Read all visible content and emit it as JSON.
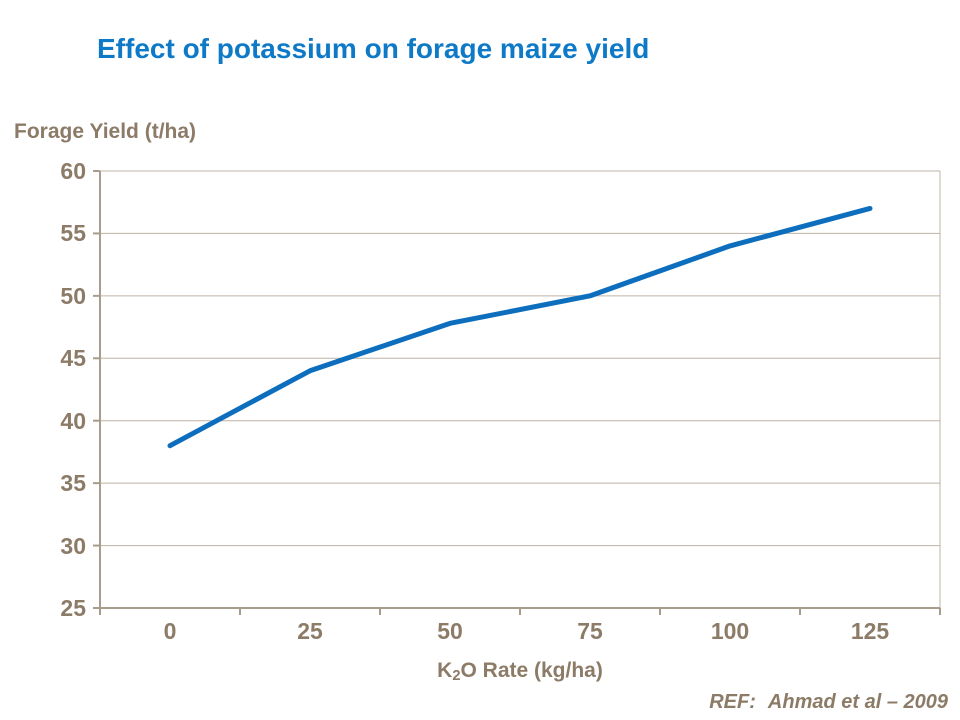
{
  "title": "Effect of potassium on forage maize yield",
  "chart_data": {
    "type": "line",
    "title": "Effect of potassium on forage maize yield",
    "ylabel": "Forage Yield (t/ha)",
    "xlabel": "K2O Rate (kg/ha)",
    "xlabel_parts": {
      "base": "K",
      "sub": "2",
      "rest": "O Rate (kg/ha)"
    },
    "categories": [
      "0",
      "25",
      "50",
      "75",
      "100",
      "125"
    ],
    "values": [
      38,
      44,
      47.8,
      50,
      54,
      57
    ],
    "series_name": "Forage yield",
    "yticks": [
      60,
      55,
      50,
      45,
      40,
      35,
      30,
      25
    ],
    "ylim": [
      25,
      60
    ],
    "xlim_categories": true,
    "grid": "horizontal",
    "legend": false,
    "line_width": 5
  },
  "reference": {
    "label": "REF:",
    "text": "Ahmad et al – 2009"
  },
  "colors": {
    "title": "#0E7AC7",
    "line": "#0D6EBE",
    "axis_text": "#8C7B67",
    "gridline": "#BDB3A4",
    "axis_line": "#A89C8D"
  }
}
